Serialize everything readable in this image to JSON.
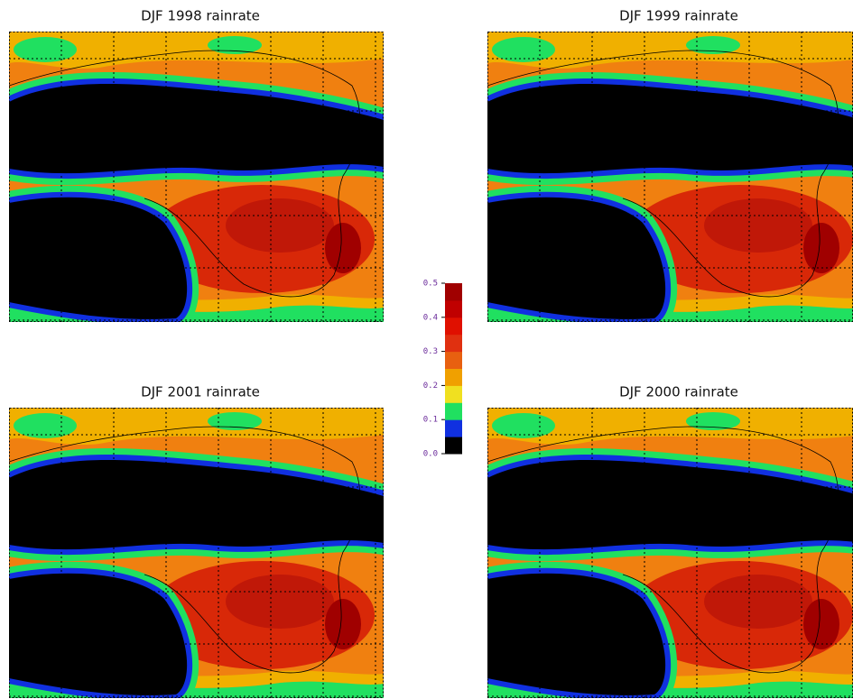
{
  "panels": [
    {
      "title": "DJF 1998 rainrate"
    },
    {
      "title": "DJF 1999 rainrate"
    },
    {
      "title": "DJF 2001 rainrate"
    },
    {
      "title": "DJF 2000 rainrate"
    }
  ],
  "colorbar": {
    "lim": [
      0,
      0.5
    ],
    "ticks": [
      {
        "value": 0,
        "label": "0.0"
      },
      {
        "value": 0.1,
        "label": "0.1"
      },
      {
        "value": 0.2,
        "label": "0.2"
      },
      {
        "value": 0.3,
        "label": "0.3"
      },
      {
        "value": 0.4,
        "label": "0.4"
      },
      {
        "value": 0.5,
        "label": "0.5"
      }
    ],
    "colors": [
      "#000000",
      "#1030e0",
      "#20e060",
      "#f0e020",
      "#f0a000",
      "#e86010",
      "#e03010",
      "#e01000",
      "#c00000",
      "#a00000"
    ]
  }
}
